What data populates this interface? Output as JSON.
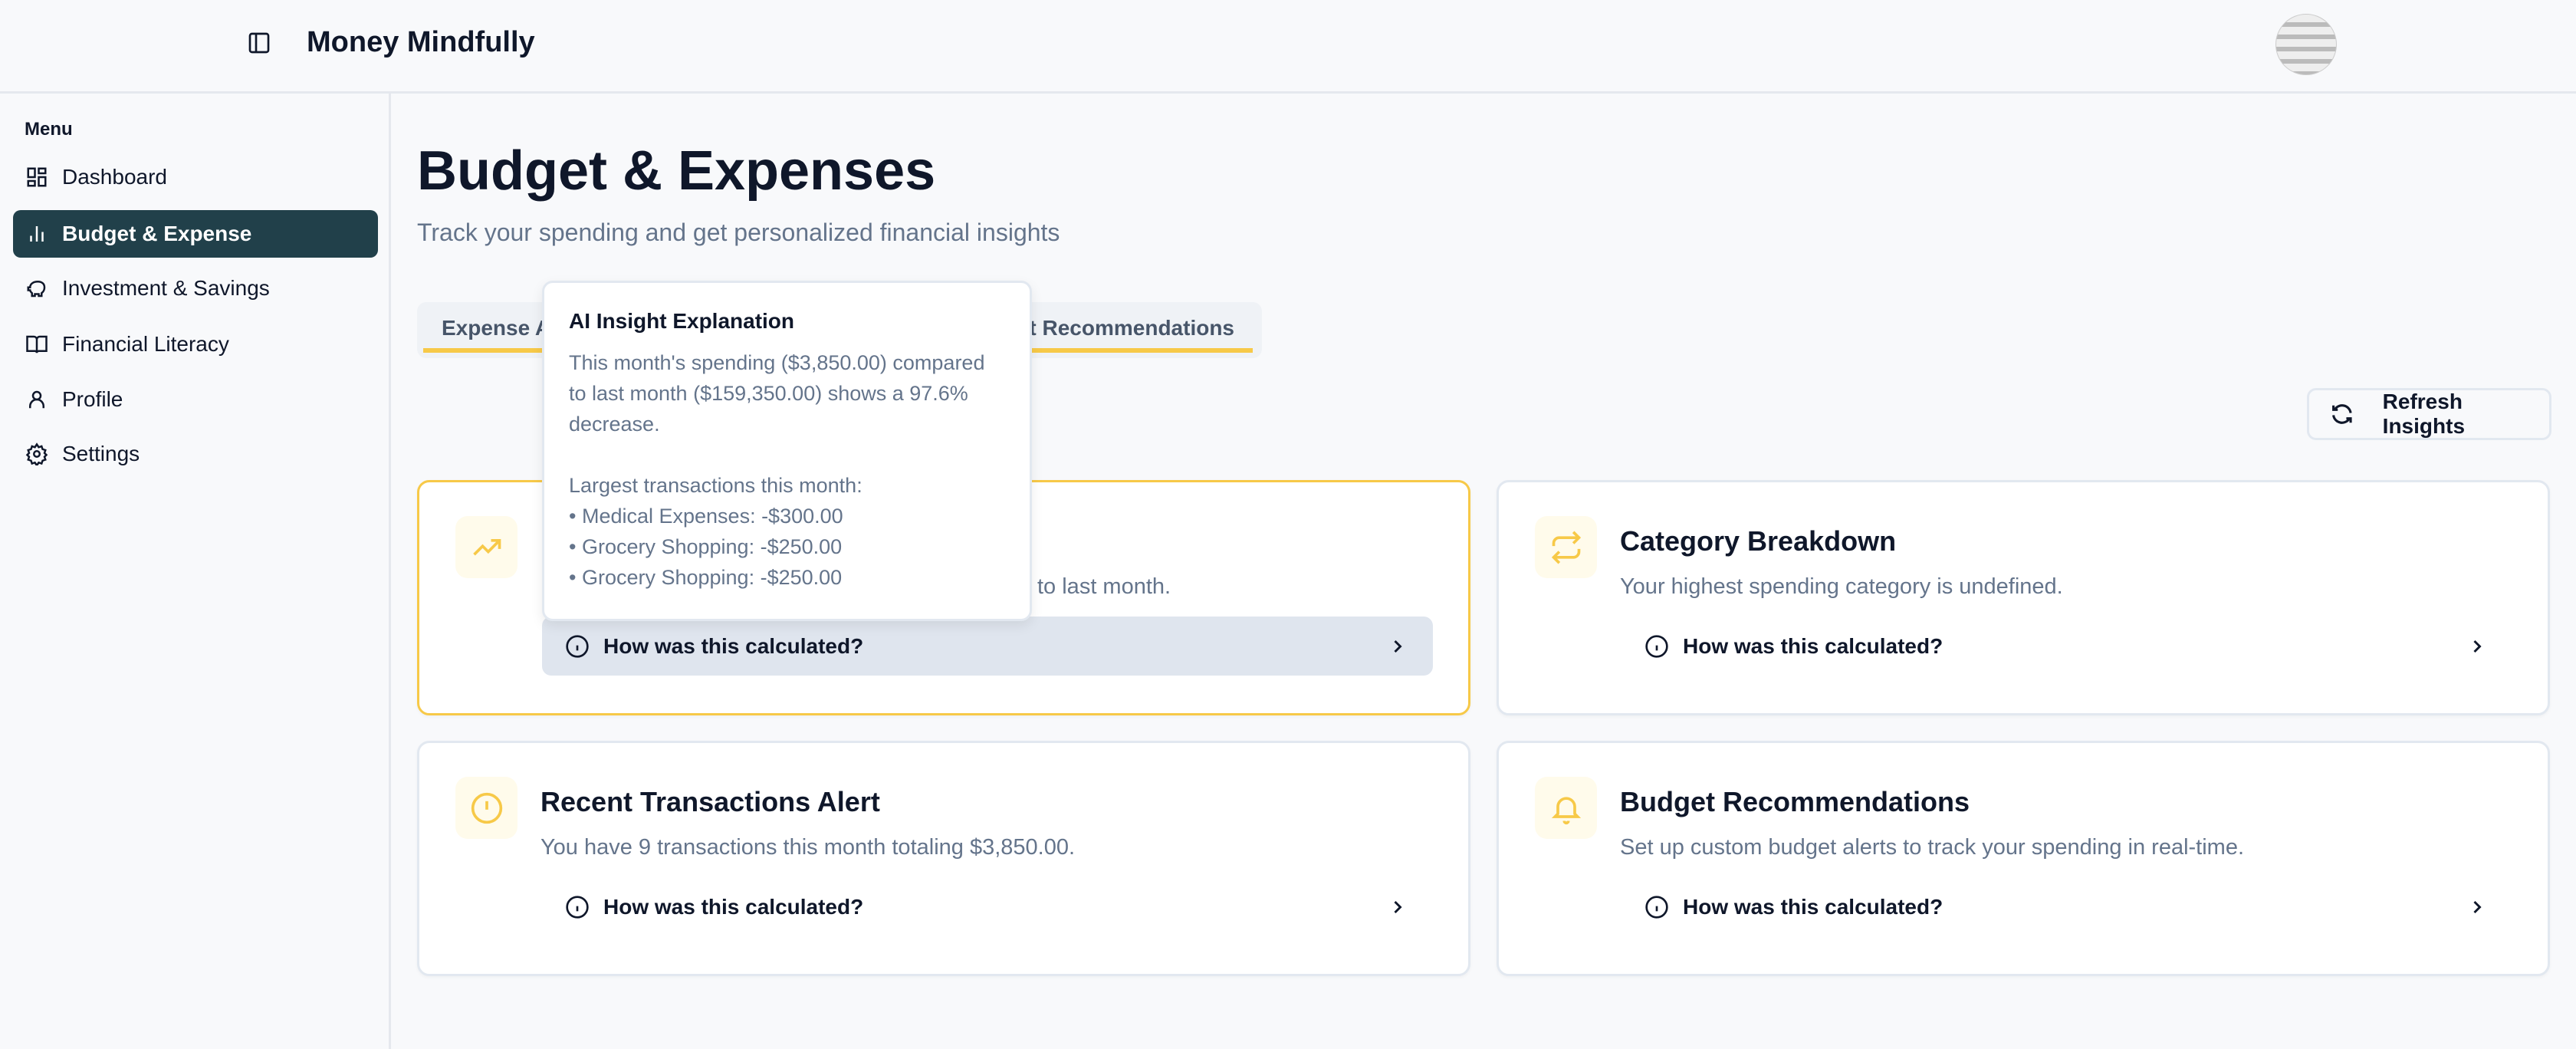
{
  "header": {
    "app_title": "Money Mindfully"
  },
  "sidebar": {
    "menu_label": "Menu",
    "items": [
      {
        "label": "Dashboard",
        "icon": "dashboard-icon"
      },
      {
        "label": "Budget & Expense",
        "icon": "bar-chart-icon",
        "active": true
      },
      {
        "label": "Investment & Savings",
        "icon": "piggy-bank-icon"
      },
      {
        "label": "Financial Literacy",
        "icon": "book-icon"
      },
      {
        "label": "Profile",
        "icon": "user-icon"
      },
      {
        "label": "Settings",
        "icon": "gear-icon"
      }
    ]
  },
  "main": {
    "title": "Budget & Expenses",
    "subtitle": "Track your spending and get personalized financial insights",
    "tabs": [
      {
        "label": "Expense A"
      },
      {
        "label": "ct Recommendations"
      }
    ],
    "refresh_label": "Refresh Insights",
    "cards": [
      {
        "title": "",
        "description": "to last month.",
        "how": "How was this calculated?",
        "icon": "trending-up-icon"
      },
      {
        "title": "Category Breakdown",
        "description": "Your highest spending category is undefined.",
        "how": "How was this calculated?",
        "icon": "repeat-icon"
      },
      {
        "title": "Recent Transactions Alert",
        "description": "You have 9 transactions this month totaling $3,850.00.",
        "how": "How was this calculated?",
        "icon": "alert-circle-icon"
      },
      {
        "title": "Budget Recommendations",
        "description": "Set up custom budget alerts to track your spending in real-time.",
        "how": "How was this calculated?",
        "icon": "bell-icon"
      }
    ]
  },
  "tooltip": {
    "title": "AI Insight Explanation",
    "lines": [
      "This month's spending ($3,850.00) compared",
      "to last month ($159,350.00) shows a 97.6%",
      "decrease.",
      "",
      "Largest transactions this month:",
      "• Medical Expenses: -$300.00",
      "• Grocery Shopping: -$250.00",
      "• Grocery Shopping: -$250.00"
    ]
  },
  "colors": {
    "accent": "#f7c948",
    "sidebar_active": "#21404a",
    "muted_text": "#64748b"
  }
}
